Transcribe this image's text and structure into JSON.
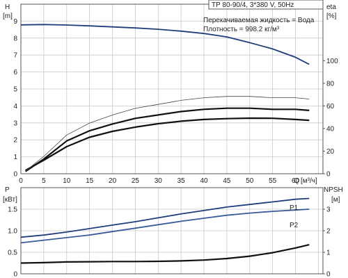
{
  "chart_data": [
    {
      "type": "line",
      "panel": "top",
      "title": "TP 80-90/4, 3*380 V, 50Hz",
      "info_lines": [
        "Перекачиваемая жидкость = Вода",
        "Плотность = 998.2 кг/м³"
      ],
      "xlabel": "Q",
      "xunit": "[м³/ч]",
      "xlim": [
        0,
        66
      ],
      "xticks": [
        "0",
        "5",
        "10",
        "15",
        "20",
        "25",
        "30",
        "35",
        "40",
        "45",
        "50",
        "55",
        "60"
      ],
      "ylabel_left": "H",
      "yunit_left": "[m]",
      "ylim_left": [
        0,
        10
      ],
      "yticks_left": [
        "0",
        "1",
        "2",
        "3",
        "4",
        "5",
        "6",
        "7",
        "8",
        "9"
      ],
      "ylabel_right": "eta",
      "yunit_right": "[%]",
      "ylim_right": [
        0,
        150
      ],
      "yticks_right": [
        "0",
        "20",
        "40",
        "60",
        "80",
        "100"
      ],
      "grid": true,
      "series": [
        {
          "axis": "left",
          "color": "#1f3d7a",
          "x": [
            0,
            5,
            10,
            15,
            20,
            25,
            30,
            35,
            40,
            45,
            50,
            55,
            60,
            63
          ],
          "y": [
            8.78,
            8.8,
            8.77,
            8.72,
            8.66,
            8.6,
            8.52,
            8.41,
            8.27,
            8.07,
            7.73,
            7.36,
            6.87,
            6.45
          ]
        },
        {
          "axis": "left",
          "color": "#111111",
          "x": [
            1,
            5,
            10,
            15,
            20,
            25,
            30,
            35,
            40,
            45,
            50,
            55,
            60,
            63
          ],
          "y": [
            0.2,
            0.8,
            1.6,
            2.15,
            2.5,
            2.75,
            2.95,
            3.1,
            3.2,
            3.25,
            3.28,
            3.27,
            3.2,
            3.15
          ]
        },
        {
          "axis": "right",
          "color": "#111111",
          "x": [
            1,
            5,
            10,
            15,
            20,
            25,
            30,
            35,
            40,
            45,
            50,
            55,
            60,
            63
          ],
          "y": [
            2,
            13,
            29,
            38,
            44,
            49,
            52,
            55,
            57,
            58,
            58,
            57,
            57,
            56
          ]
        }
      ]
    },
    {
      "type": "line",
      "panel": "bottom",
      "xlim": [
        0,
        66
      ],
      "ylabel_left": "P",
      "yunit_left": "[кВт]",
      "ylim_left": [
        0,
        2
      ],
      "yticks_left": [
        "0",
        "0.5",
        "1.0",
        "1.5"
      ],
      "ylabel_right": "NPSH",
      "yunit_right": "[м]",
      "ylim_right": [
        0,
        4
      ],
      "yticks_right": [
        "0",
        "1",
        "2",
        "3"
      ],
      "grid": true,
      "series": [
        {
          "name": "P1",
          "axis": "left",
          "color": "#1f3d7a",
          "x": [
            0,
            5,
            10,
            15,
            20,
            25,
            30,
            35,
            40,
            45,
            50,
            55,
            60,
            63
          ],
          "y": [
            0.85,
            0.9,
            0.97,
            1.05,
            1.13,
            1.21,
            1.3,
            1.39,
            1.47,
            1.55,
            1.61,
            1.67,
            1.73,
            1.75
          ]
        },
        {
          "name": "P2",
          "axis": "left",
          "color": "#3a5a99",
          "x": [
            0,
            5,
            10,
            15,
            20,
            25,
            30,
            35,
            40,
            45,
            50,
            55,
            60,
            63
          ],
          "y": [
            0.72,
            0.78,
            0.84,
            0.9,
            0.98,
            1.06,
            1.14,
            1.22,
            1.29,
            1.36,
            1.41,
            1.45,
            1.48,
            1.5
          ]
        },
        {
          "axis": "right",
          "color": "#111111",
          "x": [
            0,
            5,
            10,
            15,
            20,
            25,
            30,
            35,
            40,
            45,
            50,
            55,
            60,
            63
          ],
          "y": [
            0.5,
            0.52,
            0.55,
            0.56,
            0.57,
            0.57,
            0.58,
            0.6,
            0.64,
            0.71,
            0.82,
            0.98,
            1.2,
            1.35
          ]
        }
      ]
    }
  ]
}
